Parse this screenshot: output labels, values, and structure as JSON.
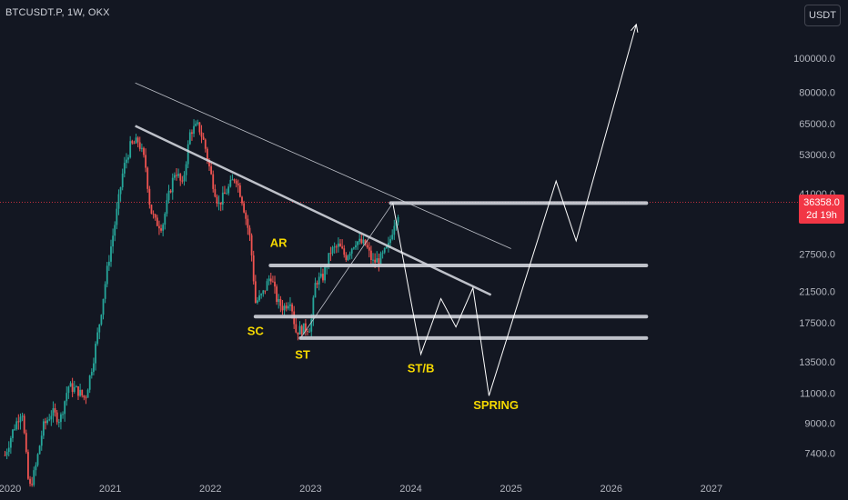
{
  "header": {
    "symbol_title": "BTCUSDT.P, 1W, OKX"
  },
  "currency": "USDT",
  "last_price": {
    "value": "36358.0",
    "countdown": "2d 19h",
    "color": "#f23645"
  },
  "colors": {
    "background": "#131722",
    "up": "#26a69a",
    "down": "#ef5350",
    "annotation": "#f5d800",
    "drawing": "#ffffff",
    "level": "#d1d4dc"
  },
  "chart_data": {
    "type": "candlestick",
    "y_scale": "log",
    "ylim": [
      6500,
      140000
    ],
    "xlim": [
      2019.9,
      2027.8
    ],
    "x_ticks": [
      "2020",
      "2021",
      "2022",
      "2023",
      "2024",
      "2025",
      "2026",
      "2027"
    ],
    "y_ticks": [
      "100000.0",
      "80000.0",
      "65000.0",
      "53000.0",
      "41000.0",
      "27500.0",
      "21500.0",
      "17500.0",
      "13500.0",
      "11000.0",
      "9000.0",
      "7400.0"
    ],
    "close_path": [
      [
        2019.95,
        7300
      ],
      [
        2020.03,
        8600
      ],
      [
        2020.12,
        9900
      ],
      [
        2020.19,
        5800
      ],
      [
        2020.25,
        6600
      ],
      [
        2020.33,
        8800
      ],
      [
        2020.42,
        9700
      ],
      [
        2020.5,
        9200
      ],
      [
        2020.58,
        11500
      ],
      [
        2020.67,
        11200
      ],
      [
        2020.75,
        10600
      ],
      [
        2020.83,
        13600
      ],
      [
        2020.9,
        18000
      ],
      [
        2020.98,
        26000
      ],
      [
        2021.05,
        34000
      ],
      [
        2021.13,
        48000
      ],
      [
        2021.2,
        56000
      ],
      [
        2021.28,
        58000
      ],
      [
        2021.35,
        50000
      ],
      [
        2021.4,
        37000
      ],
      [
        2021.45,
        34000
      ],
      [
        2021.52,
        33000
      ],
      [
        2021.58,
        40000
      ],
      [
        2021.65,
        48000
      ],
      [
        2021.72,
        43000
      ],
      [
        2021.8,
        62000
      ],
      [
        2021.88,
        64000
      ],
      [
        2021.94,
        57000
      ],
      [
        2022.0,
        47000
      ],
      [
        2022.08,
        38000
      ],
      [
        2022.17,
        42000
      ],
      [
        2022.25,
        46000
      ],
      [
        2022.32,
        39000
      ],
      [
        2022.4,
        30000
      ],
      [
        2022.45,
        20000
      ],
      [
        2022.52,
        21000
      ],
      [
        2022.6,
        24000
      ],
      [
        2022.67,
        20000
      ],
      [
        2022.73,
        19300
      ],
      [
        2022.8,
        20500
      ],
      [
        2022.85,
        16500
      ],
      [
        2022.92,
        16800
      ],
      [
        2023.0,
        17000
      ],
      [
        2023.05,
        23000
      ],
      [
        2023.12,
        23500
      ],
      [
        2023.2,
        28000
      ],
      [
        2023.28,
        29000
      ],
      [
        2023.35,
        27000
      ],
      [
        2023.45,
        30000
      ],
      [
        2023.55,
        29200
      ],
      [
        2023.62,
        26000
      ],
      [
        2023.7,
        26700
      ],
      [
        2023.78,
        29000
      ],
      [
        2023.84,
        34500
      ],
      [
        2023.88,
        36358
      ]
    ],
    "levels": [
      {
        "from": 2023.8,
        "to": 2026.35,
        "y": 38500
      },
      {
        "from": 2022.6,
        "to": 2026.35,
        "y": 25500
      },
      {
        "from": 2022.45,
        "to": 2026.35,
        "y": 18200
      },
      {
        "from": 2022.9,
        "to": 2026.35,
        "y": 15800
      }
    ],
    "trendlines": [
      {
        "points": [
          [
            2021.25,
            64000
          ],
          [
            2024.8,
            21000
          ]
        ],
        "width": 2.5
      },
      {
        "points": [
          [
            2021.25,
            85000
          ],
          [
            2025.0,
            28500
          ]
        ],
        "width": 0.8
      },
      {
        "points": [
          [
            2022.9,
            15800
          ],
          [
            2023.82,
            38500
          ]
        ],
        "width": 0.8
      }
    ],
    "projection": [
      [
        2023.82,
        38500
      ],
      [
        2024.1,
        14200
      ],
      [
        2024.3,
        20500
      ],
      [
        2024.45,
        17000
      ],
      [
        2024.62,
        22000
      ],
      [
        2024.78,
        10800
      ],
      [
        2025.45,
        44500
      ],
      [
        2025.65,
        30000
      ],
      [
        2026.25,
        125000
      ]
    ],
    "annotations": [
      {
        "label": "AR",
        "x": 2022.68,
        "y": 28800
      },
      {
        "label": "SC",
        "x": 2022.45,
        "y": 16100
      },
      {
        "label": "ST",
        "x": 2022.92,
        "y": 13800
      },
      {
        "label": "ST/B",
        "x": 2024.1,
        "y": 12600
      },
      {
        "label": "SPRING",
        "x": 2024.85,
        "y": 9900
      }
    ]
  }
}
